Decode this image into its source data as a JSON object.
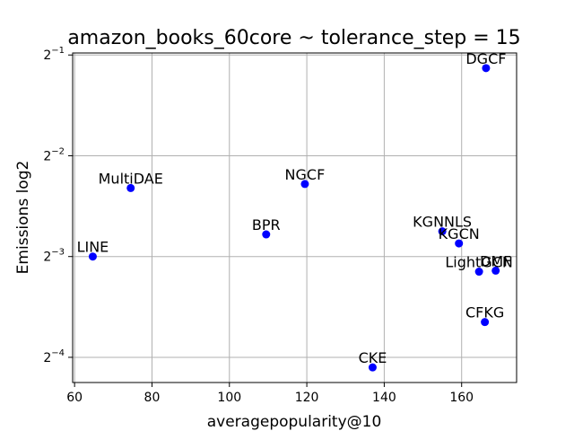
{
  "chart_data": {
    "type": "scatter",
    "title": "amazon_books_60core ~ tolerance_step = 15",
    "xlabel": "averagepopularity@10",
    "ylabel": "Emissions log2",
    "xlim": [
      59.5,
      174.2
    ],
    "ylim_log2": [
      -4.25,
      -0.98
    ],
    "yscale": "log2",
    "grid": true,
    "marker_color": "#0000ff",
    "x_ticks": [
      {
        "value": 60,
        "label": "60"
      },
      {
        "value": 80,
        "label": "80"
      },
      {
        "value": 100,
        "label": "100"
      },
      {
        "value": 120,
        "label": "120"
      },
      {
        "value": 140,
        "label": "140"
      },
      {
        "value": 160,
        "label": "160"
      }
    ],
    "y_ticks": [
      {
        "log2": -1,
        "base": "2",
        "exp": "−1"
      },
      {
        "log2": -2,
        "base": "2",
        "exp": "−2"
      },
      {
        "log2": -3,
        "base": "2",
        "exp": "−3"
      },
      {
        "log2": -4,
        "base": "2",
        "exp": "−4"
      }
    ],
    "points": [
      {
        "label": "DGCF",
        "x": 166.3,
        "log2y": -1.13
      },
      {
        "label": "MultiDAE",
        "x": 74.5,
        "log2y": -2.32
      },
      {
        "label": "NGCF",
        "x": 119.5,
        "log2y": -2.28
      },
      {
        "label": "BPR",
        "x": 109.5,
        "log2y": -2.78
      },
      {
        "label": "LINE",
        "x": 64.7,
        "log2y": -3.0
      },
      {
        "label": "KGNNLS",
        "x": 155.0,
        "log2y": -2.75
      },
      {
        "label": "KGCN",
        "x": 159.3,
        "log2y": -2.87
      },
      {
        "label": "LightGCN",
        "x": 164.5,
        "log2y": -3.15
      },
      {
        "label": "DMF",
        "x": 168.8,
        "log2y": -3.14
      },
      {
        "label": "CFKG",
        "x": 166.0,
        "log2y": -3.65
      },
      {
        "label": "CKE",
        "x": 137.0,
        "log2y": -4.1
      }
    ]
  }
}
